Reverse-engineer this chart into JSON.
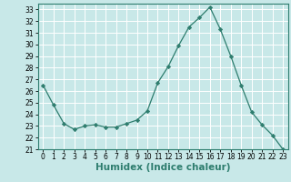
{
  "x": [
    0,
    1,
    2,
    3,
    4,
    5,
    6,
    7,
    8,
    9,
    10,
    11,
    12,
    13,
    14,
    15,
    16,
    17,
    18,
    19,
    20,
    21,
    22,
    23
  ],
  "y": [
    26.5,
    24.8,
    23.2,
    22.7,
    23.0,
    23.1,
    22.9,
    22.9,
    23.2,
    23.5,
    24.3,
    26.7,
    28.1,
    29.9,
    31.5,
    32.3,
    33.2,
    31.3,
    29.0,
    26.5,
    24.2,
    23.1,
    22.2,
    21.0
  ],
  "line_color": "#2e7d6e",
  "marker": "D",
  "marker_size": 2.2,
  "bg_color": "#c8e8e8",
  "grid_color": "#ffffff",
  "xlabel": "Humidex (Indice chaleur)",
  "xlim": [
    -0.5,
    23.5
  ],
  "ylim": [
    21,
    33.5
  ],
  "yticks": [
    21,
    22,
    23,
    24,
    25,
    26,
    27,
    28,
    29,
    30,
    31,
    32,
    33
  ],
  "xticks": [
    0,
    1,
    2,
    3,
    4,
    5,
    6,
    7,
    8,
    9,
    10,
    11,
    12,
    13,
    14,
    15,
    16,
    17,
    18,
    19,
    20,
    21,
    22,
    23
  ],
  "tick_fontsize": 5.5,
  "xlabel_fontsize": 7.5
}
